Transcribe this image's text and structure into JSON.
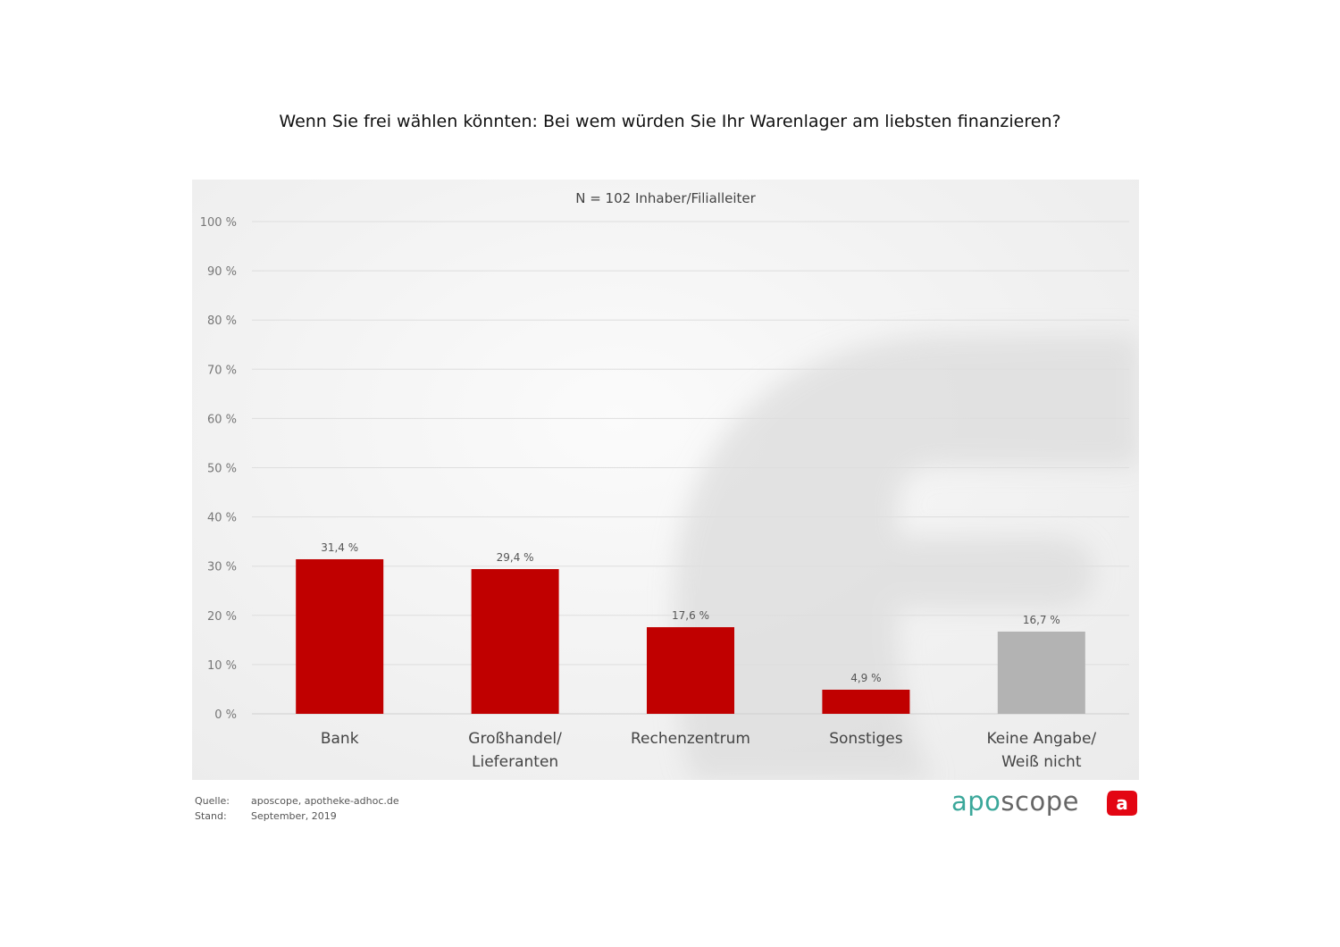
{
  "header": {
    "title": "Wenn Sie frei wählen könnten: Bei wem würden Sie Ihr Warenlager am liebsten finanzieren?"
  },
  "chart_data": {
    "type": "bar",
    "subtitle": "N = 102 Inhaber/Filialleiter",
    "categories": [
      "Bank",
      "Großhandel/ Lieferanten",
      "Rechenzentrum",
      "Sonstiges",
      "Keine Angabe/ Weiß nicht"
    ],
    "category_lines": [
      [
        "Bank"
      ],
      [
        "Großhandel/",
        "Lieferanten"
      ],
      [
        "Rechenzentrum"
      ],
      [
        "Sonstiges"
      ],
      [
        "Keine Angabe/",
        "Weiß nicht"
      ]
    ],
    "values": [
      31.4,
      29.4,
      17.6,
      4.9,
      16.7
    ],
    "value_labels": [
      "31,4 %",
      "29,4 %",
      "17,6 %",
      "4,9 %",
      "16,7 %"
    ],
    "bar_colors": [
      "#c00000",
      "#c00000",
      "#c00000",
      "#c00000",
      "#b3b3b3"
    ],
    "ylim": [
      0,
      100
    ],
    "yticks": [
      0,
      10,
      20,
      30,
      40,
      50,
      60,
      70,
      80,
      90,
      100
    ],
    "ytick_labels": [
      "0 %",
      "10 %",
      "20 %",
      "30 %",
      "40 %",
      "50 %",
      "60 %",
      "70 %",
      "80 %",
      "90 %",
      "100 %"
    ],
    "grid": true,
    "xlabel": "",
    "ylabel": ""
  },
  "footer": {
    "source_label": "Quelle:",
    "source_value": "aposcope, apotheke-adhoc.de",
    "date_label": "Stand:",
    "date_value": "September, 2019"
  },
  "brand": {
    "name_part1": "apo",
    "name_part2": "scope",
    "icon": "a-logo-icon",
    "icon_letter": "a",
    "accent_color": "#3aa79a",
    "icon_color": "#e30613"
  }
}
